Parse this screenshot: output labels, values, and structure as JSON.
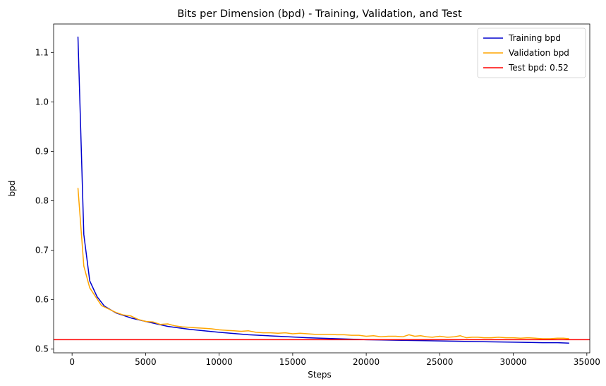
{
  "chart_data": {
    "type": "line",
    "title": "Bits per Dimension (bpd) - Training, Validation, and Test",
    "xlabel": "Steps",
    "ylabel": "bpd",
    "xlim": [
      -1255,
      35200
    ],
    "ylim": [
      0.4925,
      1.1575
    ],
    "xticks": [
      0,
      5000,
      10000,
      15000,
      20000,
      25000,
      30000,
      35000
    ],
    "xtick_labels": [
      "0",
      "5000",
      "10000",
      "15000",
      "20000",
      "25000",
      "30000",
      "35000"
    ],
    "yticks": [
      0.5,
      0.6,
      0.7,
      0.8,
      0.9,
      1.0,
      1.1
    ],
    "ytick_labels": [
      "0.5",
      "0.6",
      "0.7",
      "0.8",
      "0.9",
      "1.0",
      "1.1"
    ],
    "grid": false,
    "legend_position": "top-right",
    "series": [
      {
        "name": "Training bpd",
        "color": "#0000cd",
        "x": [
          400,
          800,
          1200,
          1700,
          2200,
          3000,
          4000,
          5000,
          6500,
          8000,
          10000,
          12000,
          14000,
          16000,
          18000,
          20000,
          22000,
          24000,
          26000,
          28000,
          30000,
          32000,
          33000,
          33800
        ],
        "y": [
          1.132,
          0.732,
          0.638,
          0.606,
          0.587,
          0.573,
          0.563,
          0.556,
          0.546,
          0.54,
          0.534,
          0.529,
          0.526,
          0.523,
          0.521,
          0.519,
          0.518,
          0.517,
          0.516,
          0.515,
          0.514,
          0.513,
          0.513,
          0.512
        ]
      },
      {
        "name": "Validation bpd",
        "color": "#ffa500",
        "x": [
          400,
          800,
          1200,
          1600,
          2000,
          2500,
          3000,
          3500,
          4000,
          4500,
          5000,
          5500,
          6000,
          6500,
          7000,
          7500,
          8000,
          8500,
          9000,
          9500,
          10000,
          10500,
          11000,
          11500,
          12000,
          12500,
          13000,
          13500,
          14000,
          14500,
          15000,
          15500,
          16000,
          16500,
          17000,
          17500,
          18000,
          18500,
          19000,
          19500,
          20000,
          20500,
          21000,
          21500,
          22000,
          22500,
          22900,
          23300,
          23700,
          24100,
          24500,
          25000,
          25500,
          26000,
          26400,
          26800,
          27200,
          27600,
          28000,
          28500,
          29000,
          29500,
          30000,
          30500,
          31000,
          31500,
          32000,
          32500,
          33000,
          33400,
          33800
        ],
        "y": [
          0.826,
          0.668,
          0.624,
          0.606,
          0.588,
          0.581,
          0.574,
          0.569,
          0.567,
          0.56,
          0.556,
          0.555,
          0.55,
          0.551,
          0.547,
          0.545,
          0.544,
          0.543,
          0.542,
          0.541,
          0.539,
          0.538,
          0.537,
          0.536,
          0.537,
          0.534,
          0.533,
          0.533,
          0.532,
          0.533,
          0.531,
          0.532,
          0.531,
          0.53,
          0.53,
          0.53,
          0.529,
          0.529,
          0.528,
          0.528,
          0.526,
          0.527,
          0.525,
          0.526,
          0.526,
          0.525,
          0.529,
          0.526,
          0.527,
          0.525,
          0.524,
          0.526,
          0.524,
          0.525,
          0.527,
          0.523,
          0.524,
          0.524,
          0.523,
          0.523,
          0.524,
          0.523,
          0.523,
          0.522,
          0.523,
          0.522,
          0.521,
          0.521,
          0.522,
          0.522,
          0.521
        ]
      },
      {
        "name": "Test bpd: 0.52",
        "color": "#ff0000",
        "type": "hline",
        "y": 0.519
      }
    ]
  }
}
